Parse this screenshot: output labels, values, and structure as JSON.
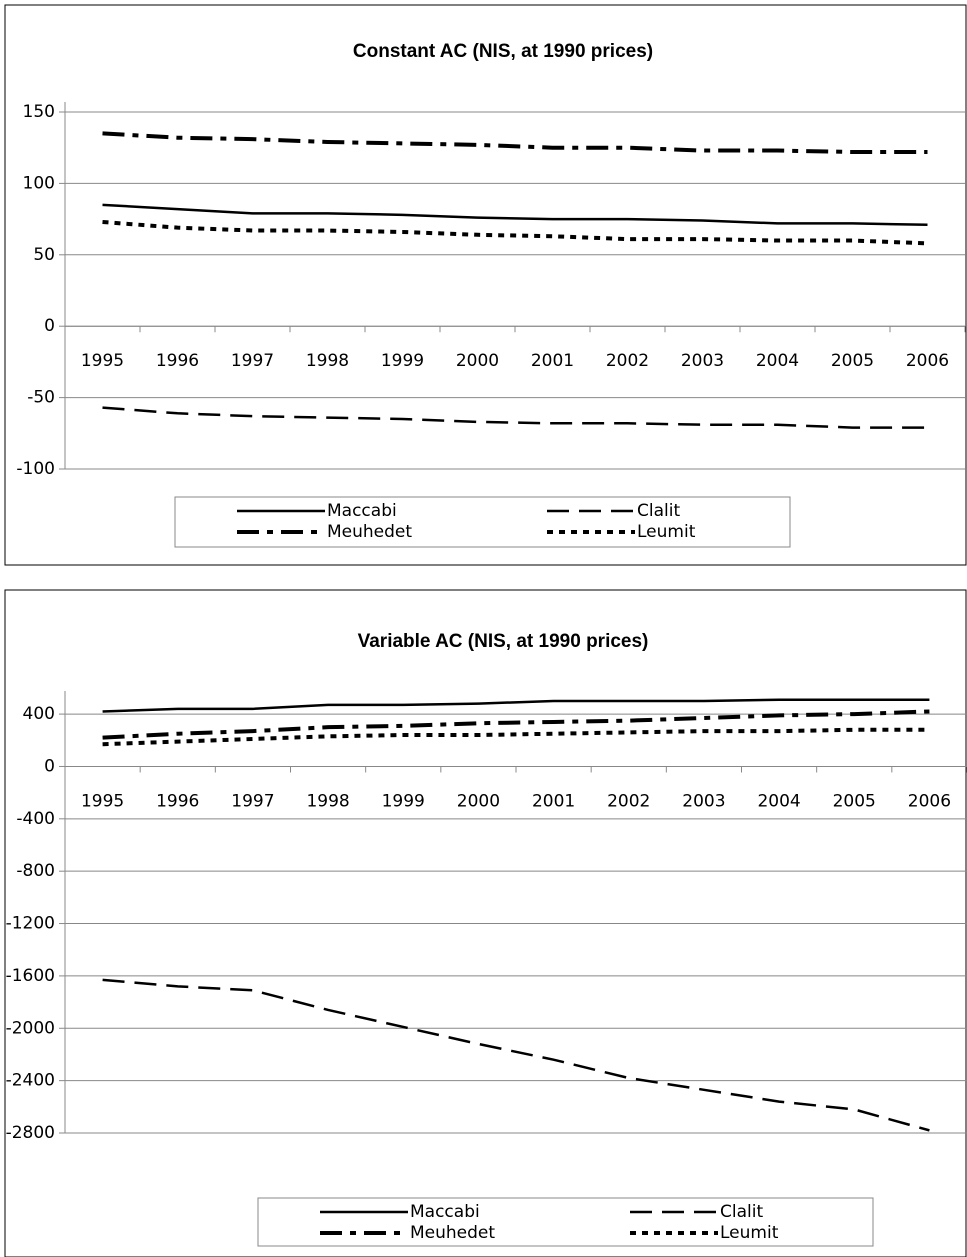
{
  "chart_data": [
    {
      "type": "line",
      "title": "Constant AC (NIS, at 1990 prices)",
      "categories": [
        "1995",
        "1996",
        "1997",
        "1998",
        "1999",
        "2000",
        "2001",
        "2002",
        "2003",
        "2004",
        "2005",
        "2006"
      ],
      "series": [
        {
          "name": "Maccabi",
          "color": "#000000",
          "style": "solid",
          "values": [
            85,
            82,
            79,
            79,
            78,
            76,
            75,
            75,
            74,
            72,
            72,
            71
          ]
        },
        {
          "name": "Clalit",
          "color": "#000000",
          "style": "dash",
          "values": [
            -57,
            -61,
            -63,
            -64,
            -65,
            -67,
            -68,
            -68,
            -69,
            -69,
            -71,
            -71
          ]
        },
        {
          "name": "Meuhedet",
          "color": "#000000",
          "style": "dashdot",
          "values": [
            135,
            132,
            131,
            129,
            128,
            127,
            125,
            125,
            123,
            123,
            122,
            122
          ]
        },
        {
          "name": "Leumit",
          "color": "#000000",
          "style": "dot",
          "values": [
            73,
            69,
            67,
            67,
            66,
            64,
            63,
            61,
            61,
            60,
            60,
            58
          ]
        }
      ],
      "ylim": [
        -100,
        150
      ],
      "yticks": [
        -100,
        -50,
        0,
        50,
        100,
        150
      ],
      "grid": true,
      "legend": "bottom"
    },
    {
      "type": "line",
      "title": "Variable  AC (NIS, at 1990 prices)",
      "categories": [
        "1995",
        "1996",
        "1997",
        "1998",
        "1999",
        "2000",
        "2001",
        "2002",
        "2003",
        "2004",
        "2005",
        "2006"
      ],
      "series": [
        {
          "name": "Maccabi",
          "color": "#000000",
          "style": "solid",
          "values": [
            420,
            440,
            440,
            470,
            470,
            480,
            500,
            500,
            500,
            510,
            510,
            510
          ]
        },
        {
          "name": "Clalit",
          "color": "#000000",
          "style": "dash",
          "values": [
            -1630,
            -1680,
            -1710,
            -1860,
            -1990,
            -2120,
            -2240,
            -2380,
            -2470,
            -2560,
            -2620,
            -2780
          ]
        },
        {
          "name": "Meuhedet",
          "color": "#000000",
          "style": "dashdot",
          "values": [
            220,
            250,
            270,
            300,
            310,
            330,
            340,
            350,
            370,
            390,
            400,
            420
          ]
        },
        {
          "name": "Leumit",
          "color": "#000000",
          "style": "dot",
          "values": [
            170,
            190,
            210,
            230,
            240,
            240,
            250,
            260,
            270,
            270,
            280,
            280
          ]
        }
      ],
      "ylim": [
        -2800,
        500
      ],
      "yticks": [
        -2800,
        -2400,
        -2000,
        -1600,
        -1200,
        -800,
        -400,
        0,
        400
      ],
      "grid": true,
      "legend": "bottom"
    }
  ]
}
